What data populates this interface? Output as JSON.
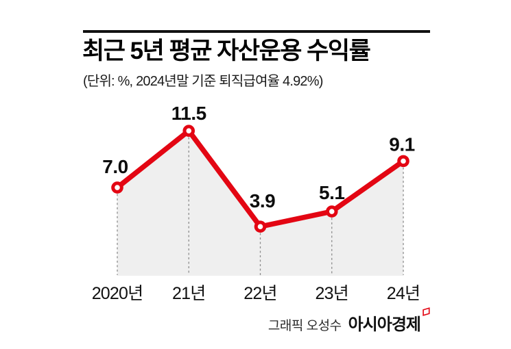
{
  "header": {
    "title": "최근 5년 평균 자산운용 수익률",
    "subtitle": "(단위: %, 2024년말 기준 퇴직급여율 4.92%)"
  },
  "chart_data": {
    "type": "line",
    "title": "최근 5년 평균 자산운용 수익률",
    "unit_note": "(단위: %, 2024년말 기준 퇴직급여율 4.92%)",
    "categories": [
      "2020년",
      "21년",
      "22년",
      "23년",
      "24년"
    ],
    "values": [
      7.0,
      11.5,
      3.9,
      5.1,
      9.1
    ],
    "value_labels": [
      "7.0",
      "11.5",
      "3.9",
      "5.1",
      "9.1"
    ],
    "ylim": [
      0,
      14
    ],
    "grid": false,
    "legend": "none",
    "style": {
      "line_color": "#e30613",
      "marker_fill": "#ffffff",
      "marker_ring_color": "#e30613",
      "area_fill_color": "#efefef",
      "guide_dash_color": "#8c8c8c",
      "value_label_color": "#0d0d0d",
      "axis_label_color": "#111111"
    }
  },
  "footer": {
    "credit": "그래픽 오성수",
    "brand": "아시아경제",
    "brand_mark_color": "#e30613"
  }
}
